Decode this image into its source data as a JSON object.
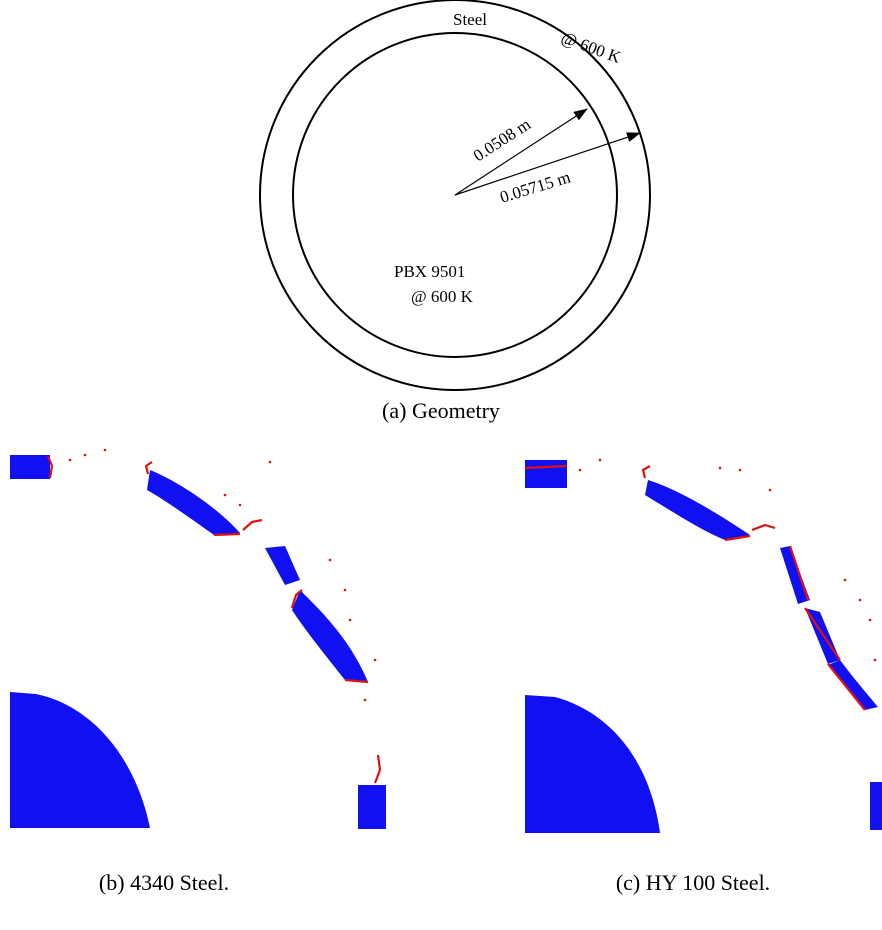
{
  "geometry": {
    "outer_label_material": "Steel",
    "outer_label_temp": "@ 600 K",
    "inner_radius_label": "0.0508 m",
    "outer_radius_label": "0.05715 m",
    "core_label_material": "PBX 9501",
    "core_label_temp": "@ 600 K",
    "caption": "(a) Geometry"
  },
  "panels": [
    {
      "caption": "(b) 4340 Steel."
    },
    {
      "caption": "(c) HY 100 Steel."
    }
  ],
  "colors": {
    "solid_material": "#1010f0",
    "damaged_material": "#e01010"
  }
}
